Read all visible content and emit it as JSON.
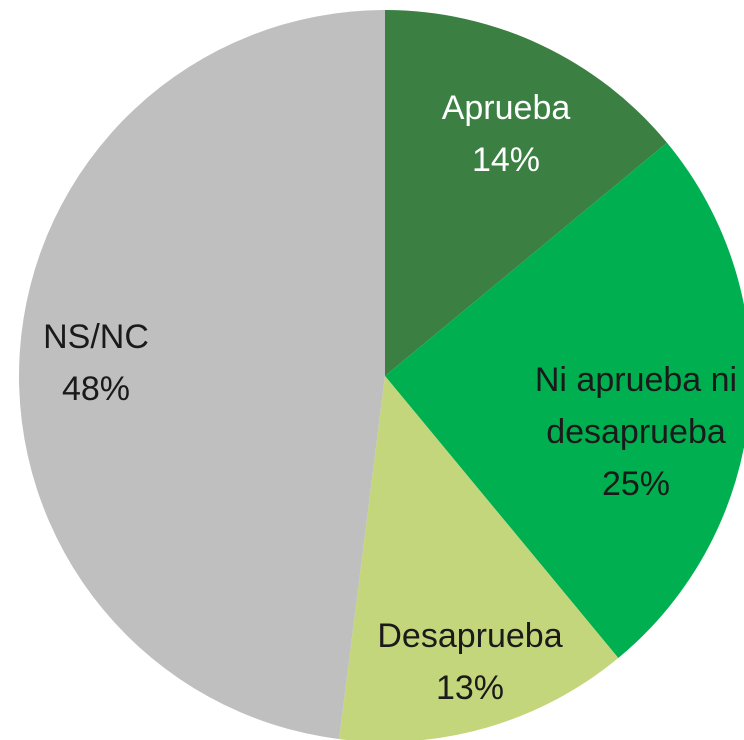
{
  "chart_data": {
    "type": "pie",
    "categories": [
      "Aprueba",
      "Ni aprueba ni desaprueba",
      "Desaprueba",
      "NS/NC"
    ],
    "values": [
      14,
      25,
      13,
      48
    ],
    "value_labels": [
      "14%",
      "25%",
      "13%",
      "48%"
    ],
    "colors": [
      "#3b7f43",
      "#00b050",
      "#c3d67b",
      "#bfbfbf"
    ]
  }
}
